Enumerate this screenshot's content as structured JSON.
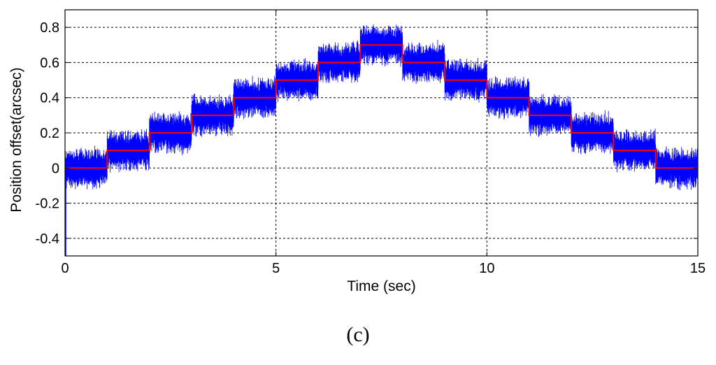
{
  "chart_data": {
    "type": "line",
    "xlabel": "Time (sec)",
    "ylabel": "Position offset(arcsec)",
    "xlim": [
      0,
      15
    ],
    "ylim": [
      -0.5,
      0.9
    ],
    "xticks": [
      0,
      5,
      10,
      15
    ],
    "xtick_labels": [
      "0",
      "5",
      "10",
      "15"
    ],
    "yticks": [
      -0.4,
      -0.2,
      0,
      0.2,
      0.4,
      0.6,
      0.8
    ],
    "ytick_labels": [
      "-0.4",
      "-0.2",
      "0",
      "0.2",
      "0.4",
      "0.6",
      "0.8"
    ],
    "grid": true,
    "series": [
      {
        "color": "#0000ff",
        "style": "noisy",
        "noise_amplitude": 0.13,
        "initial_dip": -0.5,
        "segments": [
          {
            "x": [
              0,
              1
            ],
            "y": 0.0
          },
          {
            "x": [
              1,
              2
            ],
            "y": 0.1
          },
          {
            "x": [
              2,
              3
            ],
            "y": 0.2
          },
          {
            "x": [
              3,
              4
            ],
            "y": 0.3
          },
          {
            "x": [
              4,
              5
            ],
            "y": 0.4
          },
          {
            "x": [
              5,
              6
            ],
            "y": 0.5
          },
          {
            "x": [
              6,
              7
            ],
            "y": 0.6
          },
          {
            "x": [
              7,
              8
            ],
            "y": 0.7
          },
          {
            "x": [
              8,
              9
            ],
            "y": 0.6
          },
          {
            "x": [
              9,
              10
            ],
            "y": 0.5
          },
          {
            "x": [
              10,
              11
            ],
            "y": 0.4
          },
          {
            "x": [
              11,
              12
            ],
            "y": 0.3
          },
          {
            "x": [
              12,
              13
            ],
            "y": 0.2
          },
          {
            "x": [
              13,
              14
            ],
            "y": 0.1
          },
          {
            "x": [
              14,
              15
            ],
            "y": 0.0
          }
        ]
      },
      {
        "color": "#ff0000",
        "style": "step",
        "x": [
          0,
          1,
          2,
          3,
          4,
          5,
          6,
          7,
          8,
          9,
          10,
          11,
          12,
          13,
          14,
          15
        ],
        "y": [
          0.0,
          0.1,
          0.2,
          0.3,
          0.4,
          0.5,
          0.6,
          0.7,
          0.6,
          0.5,
          0.4,
          0.3,
          0.2,
          0.1,
          0.0,
          0.0
        ]
      }
    ]
  },
  "caption": "(c)"
}
